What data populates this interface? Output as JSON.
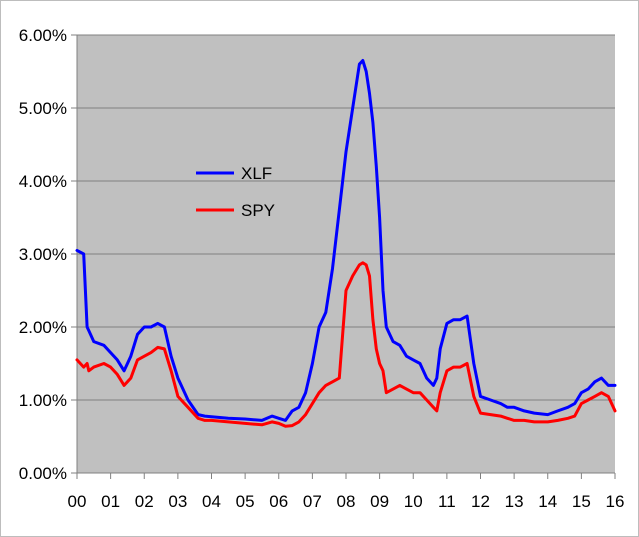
{
  "chart_data": {
    "type": "line",
    "title": "",
    "xlabel": "",
    "ylabel": "",
    "x_ticks": [
      "00",
      "01",
      "02",
      "03",
      "04",
      "05",
      "06",
      "07",
      "08",
      "09",
      "10",
      "11",
      "12",
      "13",
      "14",
      "15",
      "16"
    ],
    "xlim": [
      0,
      16
    ],
    "ylim": [
      0,
      6
    ],
    "y_ticks": [
      "0.00%",
      "1.00%",
      "2.00%",
      "3.00%",
      "4.00%",
      "5.00%",
      "6.00%"
    ],
    "y_tick_values": [
      0,
      1,
      2,
      3,
      4,
      5,
      6
    ],
    "grid": "horizontal",
    "legend_position": "inside-left",
    "colors": {
      "plot_bg": "#c0c0c0",
      "grid": "#808080",
      "axis": "#808080",
      "XLF": "#0000ff",
      "SPY": "#ff0000"
    },
    "series": [
      {
        "name": "XLF",
        "x": [
          0.0,
          0.2,
          0.25,
          0.3,
          0.35,
          0.5,
          0.8,
          1.0,
          1.2,
          1.4,
          1.6,
          1.8,
          2.0,
          2.2,
          2.4,
          2.6,
          2.8,
          3.0,
          3.3,
          3.6,
          3.8,
          4.0,
          4.5,
          5.0,
          5.5,
          5.8,
          6.0,
          6.2,
          6.4,
          6.6,
          6.8,
          7.0,
          7.2,
          7.4,
          7.6,
          7.8,
          8.0,
          8.2,
          8.4,
          8.5,
          8.6,
          8.7,
          8.8,
          8.9,
          9.0,
          9.1,
          9.2,
          9.4,
          9.6,
          9.8,
          10.0,
          10.2,
          10.4,
          10.6,
          10.7,
          10.8,
          11.0,
          11.2,
          11.4,
          11.6,
          11.8,
          12.0,
          12.3,
          12.6,
          12.8,
          13.0,
          13.3,
          13.6,
          14.0,
          14.3,
          14.6,
          14.8,
          15.0,
          15.2,
          15.4,
          15.6,
          15.8,
          16.0
        ],
        "values": [
          3.05,
          3.0,
          2.5,
          2.0,
          1.95,
          1.8,
          1.75,
          1.65,
          1.55,
          1.4,
          1.6,
          1.9,
          2.0,
          2.0,
          2.05,
          2.0,
          1.6,
          1.3,
          1.0,
          0.8,
          0.78,
          0.77,
          0.75,
          0.74,
          0.72,
          0.78,
          0.75,
          0.72,
          0.85,
          0.9,
          1.1,
          1.5,
          2.0,
          2.2,
          2.8,
          3.6,
          4.4,
          5.0,
          5.6,
          5.65,
          5.5,
          5.2,
          4.8,
          4.2,
          3.5,
          2.5,
          2.0,
          1.8,
          1.75,
          1.6,
          1.55,
          1.5,
          1.3,
          1.2,
          1.3,
          1.7,
          2.05,
          2.1,
          2.1,
          2.15,
          1.5,
          1.05,
          1.0,
          0.95,
          0.9,
          0.9,
          0.85,
          0.82,
          0.8,
          0.85,
          0.9,
          0.95,
          1.1,
          1.15,
          1.25,
          1.3,
          1.2,
          1.2
        ]
      },
      {
        "name": "SPY",
        "x": [
          0.0,
          0.2,
          0.3,
          0.35,
          0.5,
          0.8,
          1.0,
          1.2,
          1.4,
          1.6,
          1.8,
          2.0,
          2.2,
          2.4,
          2.6,
          2.8,
          3.0,
          3.3,
          3.6,
          3.8,
          4.0,
          4.5,
          5.0,
          5.5,
          5.8,
          6.0,
          6.2,
          6.4,
          6.6,
          6.8,
          7.0,
          7.2,
          7.4,
          7.6,
          7.8,
          8.0,
          8.2,
          8.4,
          8.5,
          8.6,
          8.7,
          8.8,
          8.9,
          9.0,
          9.1,
          9.2,
          9.4,
          9.6,
          9.8,
          10.0,
          10.2,
          10.4,
          10.6,
          10.7,
          10.8,
          11.0,
          11.2,
          11.4,
          11.6,
          11.8,
          12.0,
          12.3,
          12.6,
          12.8,
          13.0,
          13.3,
          13.6,
          14.0,
          14.3,
          14.6,
          14.8,
          15.0,
          15.2,
          15.4,
          15.6,
          15.8,
          16.0
        ],
        "values": [
          1.55,
          1.45,
          1.5,
          1.4,
          1.45,
          1.5,
          1.45,
          1.35,
          1.2,
          1.3,
          1.55,
          1.6,
          1.65,
          1.72,
          1.7,
          1.4,
          1.05,
          0.9,
          0.75,
          0.72,
          0.72,
          0.7,
          0.68,
          0.66,
          0.7,
          0.68,
          0.64,
          0.65,
          0.7,
          0.8,
          0.95,
          1.1,
          1.2,
          1.25,
          1.3,
          2.5,
          2.7,
          2.85,
          2.88,
          2.85,
          2.7,
          2.1,
          1.7,
          1.5,
          1.4,
          1.1,
          1.15,
          1.2,
          1.15,
          1.1,
          1.1,
          1.0,
          0.9,
          0.85,
          1.1,
          1.4,
          1.45,
          1.45,
          1.5,
          1.05,
          0.82,
          0.8,
          0.78,
          0.75,
          0.72,
          0.72,
          0.7,
          0.7,
          0.72,
          0.75,
          0.78,
          0.95,
          1.0,
          1.05,
          1.1,
          1.05,
          0.85
        ]
      }
    ]
  }
}
